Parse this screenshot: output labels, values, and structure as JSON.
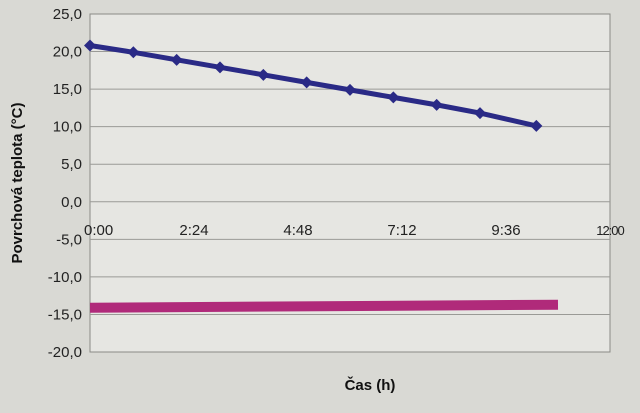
{
  "chart_data": {
    "type": "line",
    "title": "",
    "xlabel": "Čas (h)",
    "ylabel": "Povrchová teplota (°C)",
    "xlim": [
      0,
      12
    ],
    "ylim": [
      -20,
      25
    ],
    "grid": true,
    "x_tick_labels": [
      "0:00",
      "2:24",
      "4:48",
      "7:12",
      "9:36",
      "12:00"
    ],
    "y_tick_labels": [
      "25,0",
      "20,0",
      "15,0",
      "10,0",
      "5,0",
      "0,0",
      "-5,0",
      "-10,0",
      "-15,0",
      "-20,0"
    ],
    "series": [
      {
        "color": "#2a2a86",
        "marker": "diamond",
        "x": [
          0,
          1,
          2,
          3,
          4,
          5,
          6,
          7,
          8,
          9,
          10.3
        ],
        "y": [
          20.8,
          19.9,
          18.9,
          17.9,
          16.9,
          15.9,
          14.9,
          13.9,
          12.9,
          11.8,
          10.1
        ]
      },
      {
        "color": "#b02a7a",
        "marker": "none",
        "x": [
          0,
          10.8
        ],
        "y": [
          -14.1,
          -13.7
        ]
      }
    ]
  }
}
